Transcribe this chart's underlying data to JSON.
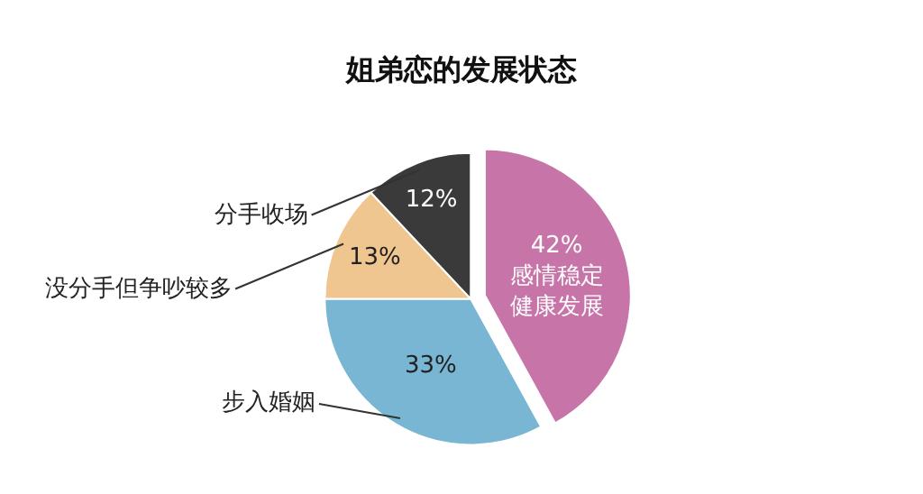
{
  "chart_data": {
    "type": "pie",
    "title": "姐弟恋的发展状态",
    "categories": [
      "感情稳定健康发展",
      "步入婚姻",
      "没分手但争吵较多",
      "分手收场"
    ],
    "values": [
      42,
      33,
      13,
      12
    ],
    "colors": [
      "#c774a8",
      "#79b6d3",
      "#f0c690",
      "#3a3a3a"
    ],
    "value_labels": [
      "42%",
      "33%",
      "13%",
      "12%"
    ],
    "legend": false
  }
}
